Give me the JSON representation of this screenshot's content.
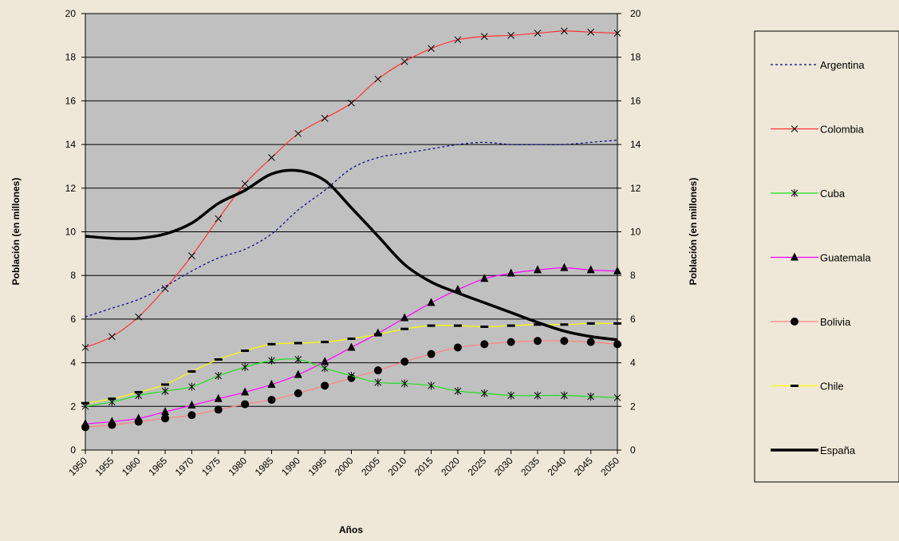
{
  "chart_data": {
    "type": "line",
    "xlabel": "Años",
    "ylabel_left": "Población (en millones)",
    "ylabel_right": "Población (en millones)",
    "ylim": [
      0,
      20
    ],
    "yticks": [
      0,
      2,
      4,
      6,
      8,
      10,
      12,
      14,
      16,
      18,
      20
    ],
    "x": [
      "1950",
      "1955",
      "1960",
      "1965",
      "1970",
      "1975",
      "1980",
      "1985",
      "1990",
      "1995",
      "2000",
      "2005",
      "2010",
      "2015",
      "2020",
      "2025",
      "2030",
      "2035",
      "2040",
      "2045",
      "2050"
    ],
    "grid": "horizontal",
    "plot_background": "#c0c0c0",
    "legend_position": "right",
    "series": [
      {
        "name": "Argentina",
        "color": "#00008b",
        "line": "dashed",
        "marker": "none",
        "values": [
          6.1,
          6.5,
          6.9,
          7.5,
          8.2,
          8.8,
          9.2,
          9.9,
          11.0,
          11.9,
          12.9,
          13.4,
          13.6,
          13.8,
          14.0,
          14.1,
          14.0,
          14.0,
          14.0,
          14.1,
          14.2
        ]
      },
      {
        "name": "Colombia",
        "color": "#ff3333",
        "line": "solid",
        "marker": "x",
        "values": [
          4.7,
          5.2,
          6.1,
          7.4,
          8.9,
          10.6,
          12.2,
          13.4,
          14.5,
          15.2,
          15.9,
          17.0,
          17.8,
          18.4,
          18.8,
          18.95,
          19.0,
          19.1,
          19.2,
          19.15,
          19.1
        ]
      },
      {
        "name": "Cuba",
        "color": "#22dd22",
        "line": "solid",
        "marker": "asterisk",
        "values": [
          2.0,
          2.2,
          2.5,
          2.7,
          2.9,
          3.4,
          3.8,
          4.1,
          4.15,
          3.75,
          3.4,
          3.1,
          3.05,
          2.95,
          2.7,
          2.6,
          2.5,
          2.5,
          2.5,
          2.45,
          2.4
        ]
      },
      {
        "name": "Guatemala",
        "color": "#ff00ff",
        "line": "solid",
        "marker": "triangle",
        "values": [
          1.2,
          1.3,
          1.45,
          1.75,
          2.05,
          2.35,
          2.65,
          3.0,
          3.45,
          4.05,
          4.7,
          5.35,
          6.05,
          6.75,
          7.35,
          7.85,
          8.1,
          8.25,
          8.35,
          8.25,
          8.2
        ]
      },
      {
        "name": "Bolivia",
        "color": "#ff8080",
        "line": "solid",
        "marker": "circle",
        "values": [
          1.05,
          1.15,
          1.3,
          1.45,
          1.6,
          1.85,
          2.1,
          2.3,
          2.6,
          2.95,
          3.3,
          3.65,
          4.05,
          4.4,
          4.7,
          4.85,
          4.95,
          5.0,
          5.0,
          4.95,
          4.85
        ]
      },
      {
        "name": "Chile",
        "color": "#ffff00",
        "line": "solid",
        "marker": "dash",
        "values": [
          2.15,
          2.35,
          2.65,
          3.0,
          3.6,
          4.15,
          4.55,
          4.85,
          4.9,
          4.95,
          5.1,
          5.3,
          5.55,
          5.7,
          5.7,
          5.65,
          5.7,
          5.75,
          5.75,
          5.8,
          5.8
        ]
      },
      {
        "name": "España",
        "color": "#000000",
        "line": "bold",
        "marker": "none",
        "values": [
          9.8,
          9.7,
          9.7,
          9.9,
          10.4,
          11.3,
          11.9,
          12.65,
          12.8,
          12.35,
          11.1,
          9.8,
          8.5,
          7.7,
          7.2,
          6.75,
          6.3,
          5.85,
          5.45,
          5.2,
          5.05
        ]
      }
    ]
  }
}
